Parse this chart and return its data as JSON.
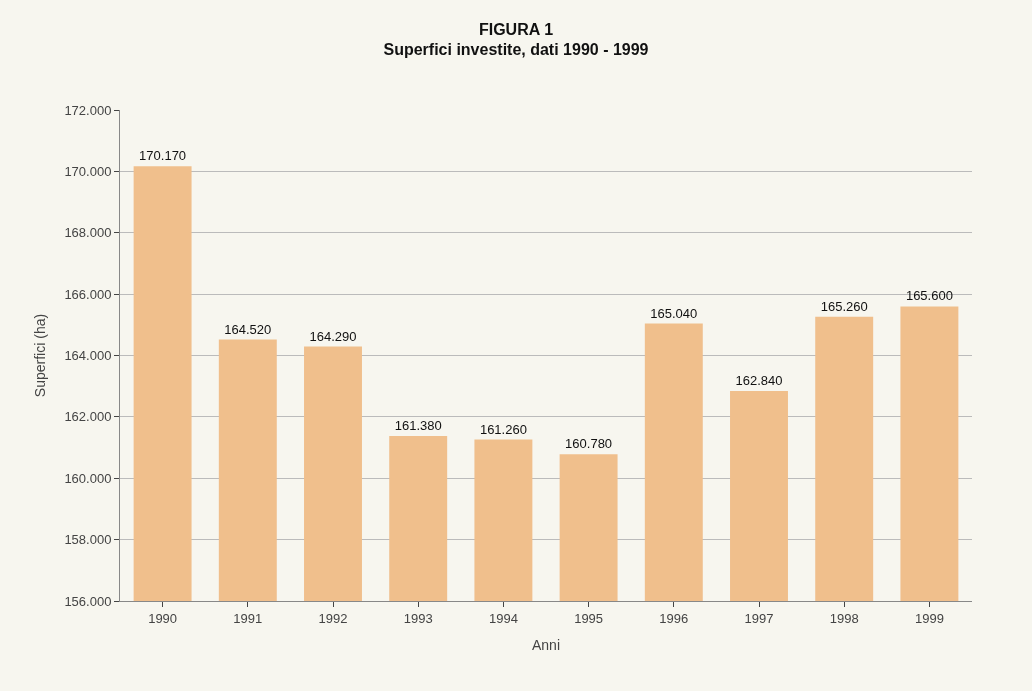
{
  "chart_data": {
    "type": "bar",
    "title": "FIGURA 1",
    "subtitle": "Superfici investite, dati 1990 - 1999",
    "xlabel": "Anni",
    "ylabel": "Superfici (ha)",
    "categories": [
      "1990",
      "1991",
      "1992",
      "1993",
      "1994",
      "1995",
      "1996",
      "1997",
      "1998",
      "1999"
    ],
    "values": [
      170170,
      164520,
      164290,
      161380,
      161260,
      160780,
      165040,
      162840,
      165260,
      165600
    ],
    "value_labels": [
      "170.170",
      "164.520",
      "164.290",
      "161.380",
      "161.260",
      "160.780",
      "165.040",
      "162.840",
      "165.260",
      "165.600"
    ],
    "color": "#f0bf8c",
    "ylim": [
      156000,
      172000
    ],
    "yticks": [
      {
        "value": 156000,
        "label": "156.000"
      },
      {
        "value": 158000,
        "label": "158.000"
      },
      {
        "value": 160000,
        "label": "160.000"
      },
      {
        "value": 162000,
        "label": "162.000"
      },
      {
        "value": 164000,
        "label": "164.000"
      },
      {
        "value": 166000,
        "label": "166.000"
      },
      {
        "value": 168000,
        "label": "168.000"
      },
      {
        "value": 170000,
        "label": "170.000"
      },
      {
        "value": 172000,
        "label": "172.000"
      }
    ],
    "grid": "y"
  }
}
